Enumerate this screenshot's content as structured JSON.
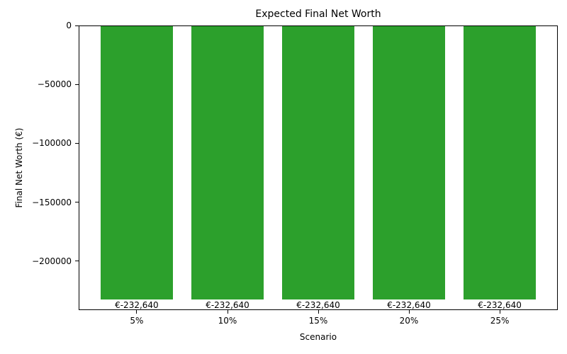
{
  "chart_data": {
    "type": "bar",
    "title": "Expected Final Net Worth",
    "xlabel": "Scenario",
    "ylabel": "Final Net Worth (€)",
    "categories": [
      "5%",
      "10%",
      "15%",
      "20%",
      "25%"
    ],
    "values": [
      -232640,
      -232640,
      -232640,
      -232640,
      -232640
    ],
    "bar_labels": [
      "€-232,640",
      "€-232,640",
      "€-232,640",
      "€-232,640",
      "€-232,640"
    ],
    "bar_color": "#2ca02c",
    "ylim": [
      -241650,
      0
    ],
    "yticks": [
      0,
      -50000,
      -100000,
      -150000,
      -200000
    ],
    "ytick_labels": [
      "0",
      "−50000",
      "−100000",
      "−150000",
      "−200000"
    ],
    "grid": false,
    "legend": null
  }
}
